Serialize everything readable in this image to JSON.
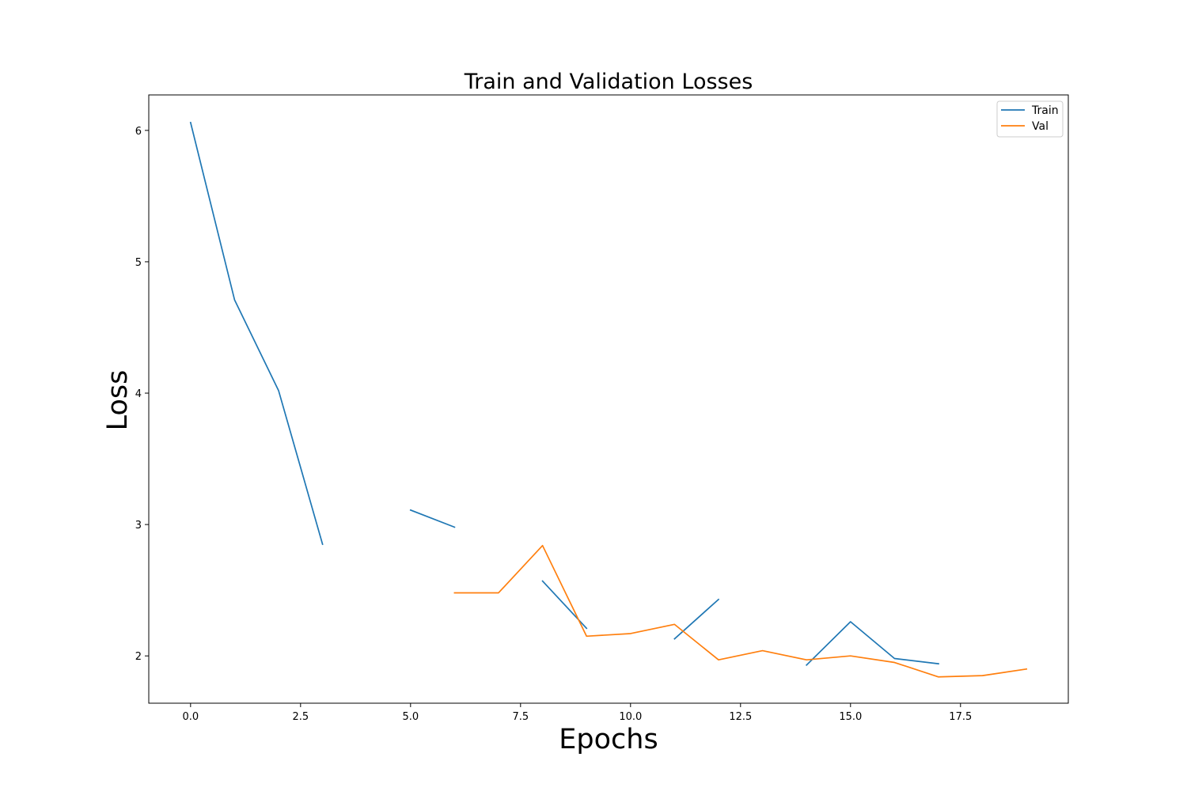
{
  "chart_data": {
    "type": "line",
    "title": "Train and Validation Losses",
    "xlabel": "Epochs",
    "ylabel": "Loss",
    "xlim": [
      -0.95,
      19.95
    ],
    "ylim": [
      1.64,
      6.27
    ],
    "xticks": [
      0.0,
      2.5,
      5.0,
      7.5,
      10.0,
      12.5,
      15.0,
      17.5
    ],
    "xtick_labels": [
      "0.0",
      "2.5",
      "5.0",
      "7.5",
      "10.0",
      "12.5",
      "15.0",
      "17.5"
    ],
    "yticks": [
      2,
      3,
      4,
      5,
      6
    ],
    "ytick_labels": [
      "2",
      "3",
      "4",
      "5",
      "6"
    ],
    "grid": false,
    "legend_position": "top-right",
    "series": [
      {
        "name": "Train",
        "color": "#1f77b4",
        "x": [
          0,
          1,
          2,
          3,
          4,
          5,
          6,
          7,
          8,
          9,
          10,
          11,
          12,
          13,
          14,
          15,
          16,
          17
        ],
        "y": [
          6.06,
          4.71,
          4.02,
          2.85,
          null,
          3.11,
          2.98,
          null,
          2.57,
          2.21,
          null,
          2.13,
          2.43,
          null,
          1.93,
          2.26,
          1.98,
          1.94
        ]
      },
      {
        "name": "Val",
        "color": "#ff7f0e",
        "x": [
          6,
          7,
          8,
          9,
          10,
          11,
          12,
          13,
          14,
          15,
          16,
          17,
          18,
          19
        ],
        "y": [
          2.48,
          2.48,
          2.84,
          2.15,
          2.17,
          2.24,
          1.97,
          2.04,
          1.97,
          2.0,
          1.95,
          1.84,
          1.85,
          1.9
        ]
      }
    ]
  }
}
